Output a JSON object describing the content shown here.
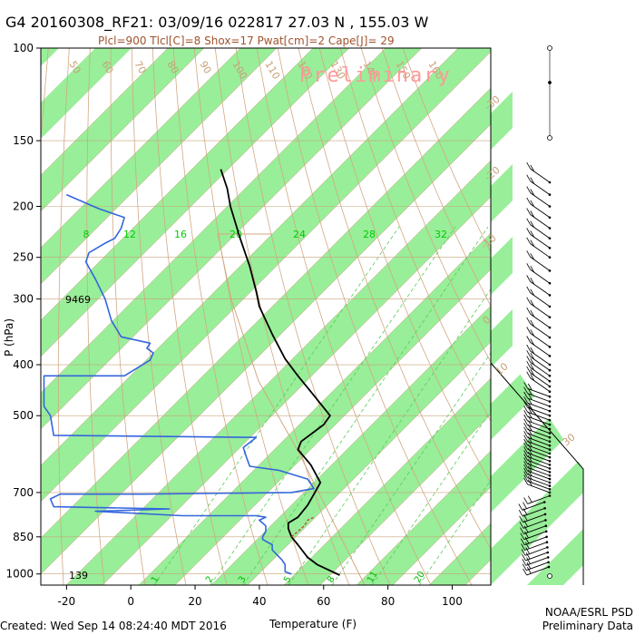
{
  "title": "G4 20160308_RF21: 03/09/16 022817  27.03 N , 155.03 W",
  "subtitle": "Plcl=900 Tlcl[C]=8 Shox=17 Pwat[cm]=2 Cape[J]= 29",
  "watermark": "Preliminary",
  "footer_created": "Created: Wed Sep 14 08:24:40 MDT 2016",
  "footer_org": "NOAA/ESRL PSD",
  "footer_status": "Preliminary Data",
  "height_labels": {
    "top": "9469",
    "bottom": "139"
  },
  "colors": {
    "temperature": "#000000",
    "dewpoint": "#3366dd",
    "parcel": "#cc3333",
    "green_band": "#99ee99",
    "dry_adiabat": "#d2a882",
    "isotherm": "#c8a27a",
    "mixing_ratio": "#55cc55",
    "wind": "#000000"
  },
  "chart_data": {
    "type": "line",
    "title": "G4 20160308_RF21: 03/09/16 022817  27.03 N , 155.03 W",
    "xlabel": "Temperature (F)",
    "ylabel": "P (hPa)",
    "xlim": [
      -28,
      112
    ],
    "x_ticks": [
      "-20",
      "0",
      "20",
      "40",
      "60",
      "80",
      "100"
    ],
    "y_scale": "log",
    "ylim": [
      1050,
      100
    ],
    "y_ticks": [
      "100",
      "150",
      "200",
      "250",
      "300",
      "400",
      "500",
      "700",
      "850",
      "1000"
    ],
    "mixing_ratio_labels": [
      "8",
      "12",
      "16",
      "20",
      "24",
      "28",
      "32"
    ],
    "mixing_ratio_bottom_labels": [
      "1",
      "2",
      "3",
      "5",
      "8",
      "11",
      "20"
    ],
    "isotherm_labels_top": [
      "50",
      "60",
      "70",
      "80",
      "90",
      "100",
      "110",
      "120",
      "130",
      "140",
      "150",
      "160"
    ],
    "isotherm_labels_right": [
      "-30",
      "-20",
      "-10",
      "0",
      "10",
      "30"
    ],
    "series": [
      {
        "name": "Temperature",
        "points": [
          [
            65,
            1005
          ],
          [
            58,
            960
          ],
          [
            55,
            930
          ],
          [
            52,
            880
          ],
          [
            50,
            850
          ],
          [
            49,
            820
          ],
          [
            49,
            800
          ],
          [
            52,
            780
          ],
          [
            55,
            740
          ],
          [
            57,
            705
          ],
          [
            59,
            670
          ],
          [
            56,
            620
          ],
          [
            52,
            580
          ],
          [
            53,
            560
          ],
          [
            60,
            520
          ],
          [
            62,
            500
          ],
          [
            56,
            450
          ],
          [
            52,
            420
          ],
          [
            48,
            390
          ],
          [
            44,
            350
          ],
          [
            40,
            310
          ],
          [
            39,
            290
          ],
          [
            37,
            260
          ],
          [
            34,
            230
          ],
          [
            31,
            200
          ],
          [
            30,
            185
          ],
          [
            28,
            170
          ]
        ]
      },
      {
        "name": "Dewpoint",
        "points": [
          [
            50,
            1000
          ],
          [
            48,
            990
          ],
          [
            48,
            960
          ],
          [
            47,
            940
          ],
          [
            44,
            900
          ],
          [
            44,
            880
          ],
          [
            41,
            860
          ],
          [
            41,
            850
          ],
          [
            42,
            830
          ],
          [
            42,
            810
          ],
          [
            40,
            790
          ],
          [
            42,
            780
          ],
          [
            39,
            775
          ],
          [
            16,
            775
          ],
          [
            -11,
            760
          ],
          [
            12,
            752
          ],
          [
            -24,
            745
          ],
          [
            -25,
            720
          ],
          [
            -22,
            705
          ],
          [
            4,
            705
          ],
          [
            50,
            700
          ],
          [
            57,
            688
          ],
          [
            55,
            660
          ],
          [
            46,
            635
          ],
          [
            37,
            624
          ],
          [
            36,
            600
          ],
          [
            35,
            575
          ],
          [
            39,
            550
          ],
          [
            -24,
            545
          ],
          [
            -25,
            500
          ],
          [
            -27,
            480
          ],
          [
            -27,
            420
          ],
          [
            -2,
            420
          ],
          [
            6,
            392
          ],
          [
            7,
            380
          ],
          [
            5,
            372
          ],
          [
            6,
            364
          ],
          [
            -3,
            354
          ],
          [
            -6,
            330
          ],
          [
            -8,
            300
          ],
          [
            -11,
            275
          ],
          [
            -14,
            255
          ],
          [
            -13,
            245
          ],
          [
            -8,
            235
          ],
          [
            -5,
            230
          ],
          [
            -3,
            220
          ],
          [
            -2,
            210
          ],
          [
            -10,
            202
          ],
          [
            -20,
            190
          ]
        ]
      },
      {
        "name": "Parcel",
        "points": [
          [
            50,
            850
          ],
          [
            52,
            830
          ],
          [
            54,
            810
          ],
          [
            55,
            790
          ],
          [
            57,
            780
          ]
        ]
      }
    ],
    "winds_levels_hPa": [
      970,
      950,
      930,
      910,
      890,
      870,
      850,
      830,
      810,
      790,
      770,
      750,
      730,
      710,
      700,
      690,
      680,
      670,
      660,
      650,
      640,
      630,
      620,
      610,
      600,
      590,
      580,
      570,
      560,
      550,
      540,
      530,
      520,
      510,
      500,
      490,
      480,
      470,
      460,
      450,
      440,
      430,
      420,
      410,
      400,
      385,
      370,
      355,
      340,
      325,
      310,
      295,
      280,
      265,
      250,
      240,
      230,
      220,
      210,
      200,
      190,
      180
    ]
  }
}
